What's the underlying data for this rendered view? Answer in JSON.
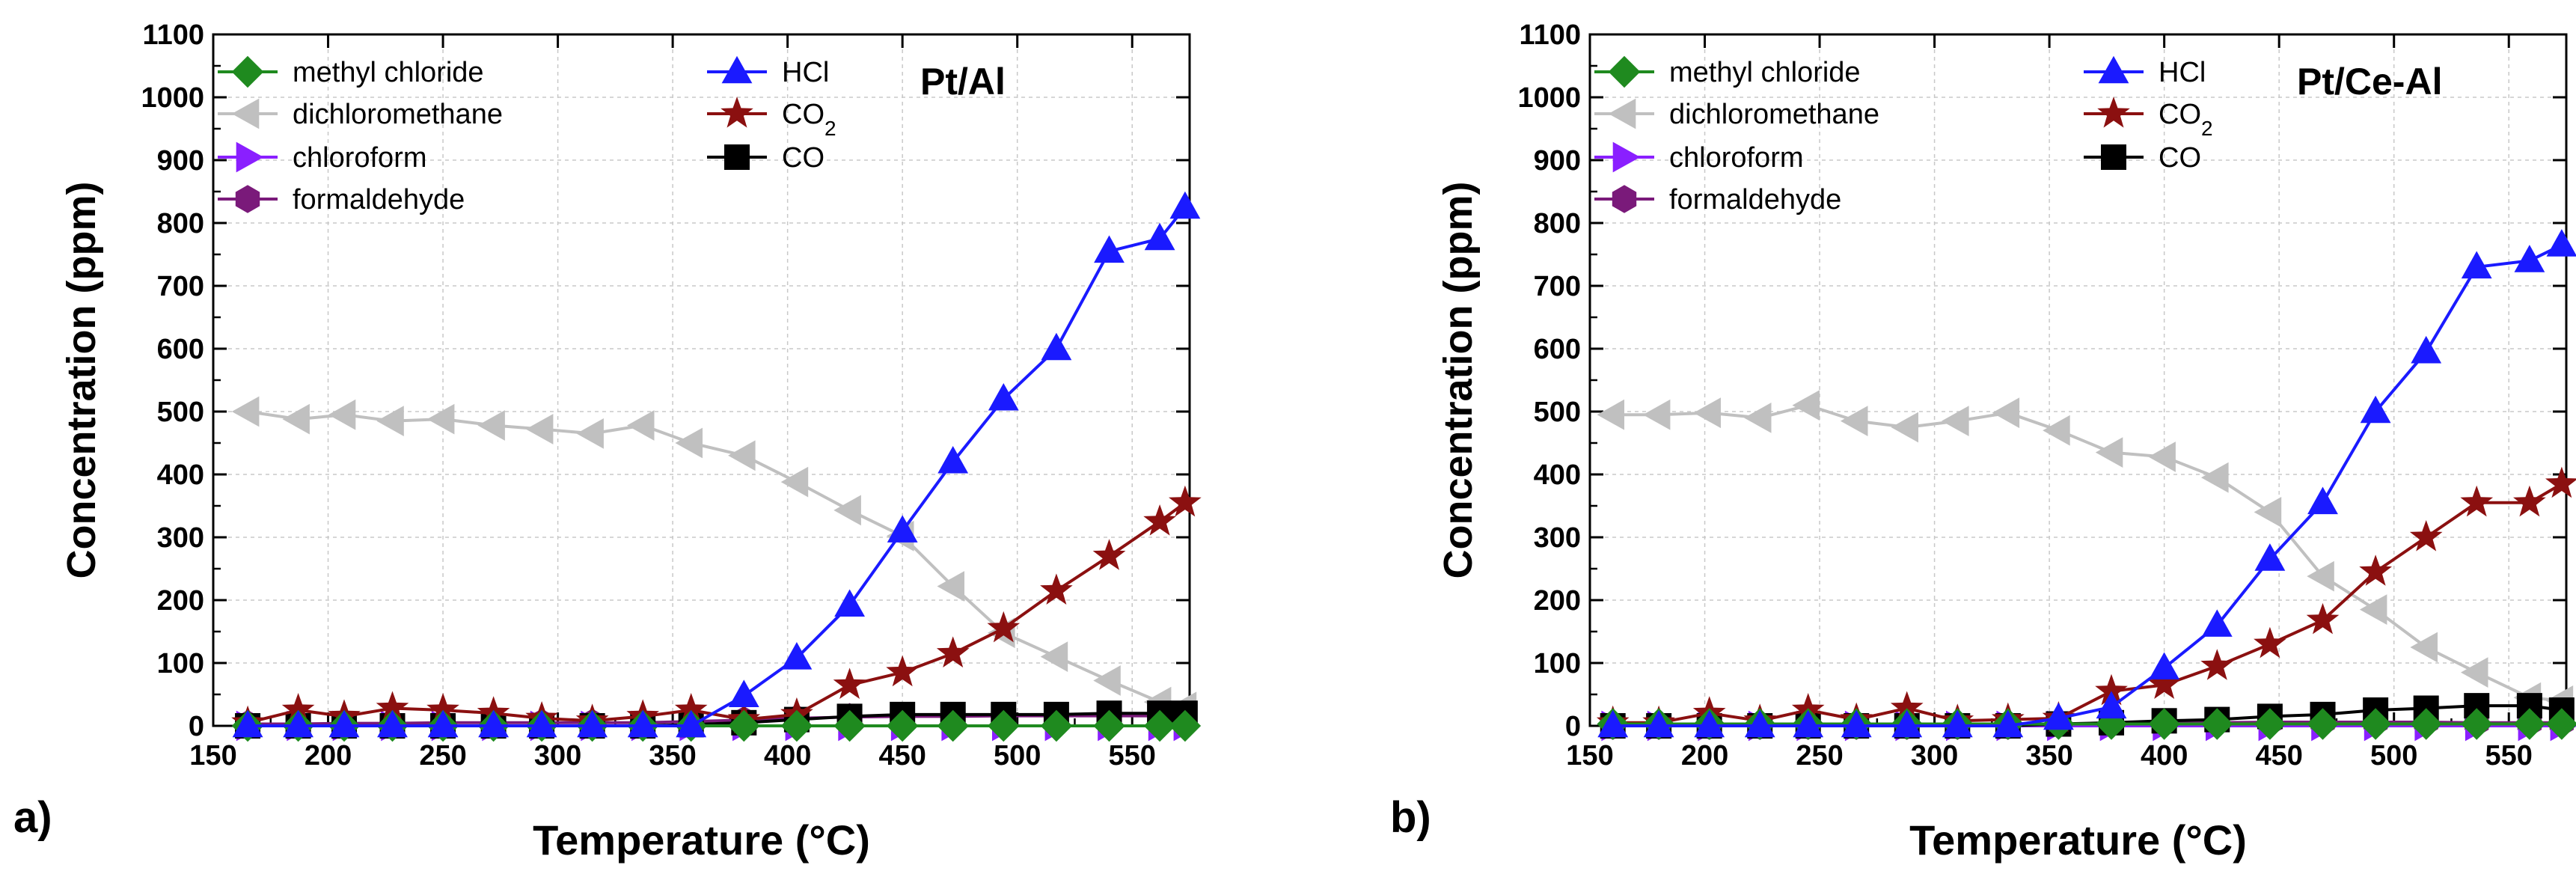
{
  "legend_entries": [
    {
      "key": "methyl_chloride",
      "label": "methyl chloride"
    },
    {
      "key": "dichloromethane",
      "label": "dichloromethane"
    },
    {
      "key": "chloroform",
      "label": "chloroform"
    },
    {
      "key": "formaldehyde",
      "label": "formaldehyde"
    },
    {
      "key": "HCl",
      "label": "HCl"
    },
    {
      "key": "CO2",
      "label": "CO",
      "sub": "2"
    },
    {
      "key": "CO",
      "label": "CO"
    }
  ],
  "styles": {
    "methyl_chloride": {
      "color": "#1f8a1f",
      "marker": "diamond"
    },
    "dichloromethane": {
      "color": "#c0c0c0",
      "marker": "triangle-left"
    },
    "chloroform": {
      "color": "#8a1fff",
      "marker": "triangle-right"
    },
    "formaldehyde": {
      "color": "#7a1a7a",
      "marker": "hexagon"
    },
    "HCl": {
      "color": "#1a1aff",
      "marker": "triangle-up"
    },
    "CO2": {
      "color": "#8b1010",
      "marker": "star"
    },
    "CO": {
      "color": "#000000",
      "marker": "square"
    }
  },
  "chart_data": [
    {
      "type": "line",
      "panel_label": "a)",
      "title": "Pt/Al",
      "xlabel": "Temperature (°C)",
      "ylabel": "Concentration (ppm)",
      "xlim": [
        150,
        575
      ],
      "ylim": [
        0,
        1100
      ],
      "xticks": [
        150,
        200,
        250,
        300,
        350,
        400,
        450,
        500,
        550
      ],
      "yticks": [
        0,
        100,
        200,
        300,
        400,
        500,
        600,
        700,
        800,
        900,
        1000,
        1100
      ],
      "grid": true,
      "x": [
        165,
        187,
        207,
        228,
        250,
        272,
        293,
        315,
        337,
        358,
        381,
        404,
        427,
        450,
        472,
        494,
        517,
        540,
        562,
        573
      ],
      "series": [
        {
          "key": "methyl_chloride",
          "name": "methyl chloride",
          "values": [
            0,
            0,
            0,
            0,
            0,
            0,
            0,
            0,
            0,
            0,
            0,
            0,
            0,
            0,
            0,
            0,
            0,
            0,
            0,
            0
          ]
        },
        {
          "key": "dichloromethane",
          "name": "dichloromethane",
          "values": [
            500,
            488,
            495,
            485,
            488,
            478,
            472,
            465,
            478,
            450,
            430,
            388,
            343,
            302,
            222,
            148,
            110,
            72,
            38,
            30
          ]
        },
        {
          "key": "chloroform",
          "name": "chloroform",
          "values": [
            0,
            0,
            0,
            0,
            0,
            0,
            0,
            0,
            0,
            0,
            0,
            0,
            0,
            0,
            0,
            0,
            0,
            0,
            0,
            0
          ]
        },
        {
          "key": "formaldehyde",
          "name": "formaldehyde",
          "values": [
            3,
            3,
            4,
            4,
            5,
            5,
            5,
            5,
            5,
            7,
            9,
            12,
            14,
            15,
            15,
            16,
            16,
            16,
            16,
            16
          ]
        },
        {
          "key": "HCl",
          "name": "HCl",
          "values": [
            0,
            0,
            0,
            0,
            0,
            0,
            0,
            0,
            0,
            0,
            48,
            108,
            192,
            310,
            420,
            520,
            600,
            755,
            775,
            825
          ]
        },
        {
          "key": "CO2",
          "name": "CO2",
          "values": [
            5,
            25,
            15,
            28,
            25,
            20,
            12,
            8,
            15,
            25,
            10,
            18,
            65,
            85,
            115,
            155,
            215,
            270,
            325,
            355
          ]
        },
        {
          "key": "CO",
          "name": "CO",
          "values": [
            0,
            0,
            0,
            0,
            0,
            0,
            0,
            0,
            0,
            2,
            5,
            10,
            15,
            18,
            18,
            18,
            18,
            20,
            20,
            20
          ]
        }
      ]
    },
    {
      "type": "line",
      "panel_label": "b)",
      "title": "Pt/Ce-Al",
      "xlabel": "Temperature (°C)",
      "ylabel": "Concentration (ppm)",
      "xlim": [
        150,
        575
      ],
      "ylim": [
        0,
        1100
      ],
      "xticks": [
        150,
        200,
        250,
        300,
        350,
        400,
        450,
        500,
        550
      ],
      "yticks": [
        0,
        100,
        200,
        300,
        400,
        500,
        600,
        700,
        800,
        900,
        1000,
        1100
      ],
      "grid": true,
      "x": [
        160,
        180,
        202,
        224,
        245,
        266,
        288,
        310,
        332,
        354,
        377,
        400,
        423,
        446,
        469,
        492,
        514,
        536,
        559,
        573
      ],
      "series": [
        {
          "key": "methyl_chloride",
          "name": "methyl chloride",
          "values": [
            3,
            3,
            3,
            3,
            3,
            3,
            3,
            3,
            3,
            3,
            3,
            3,
            3,
            3,
            3,
            3,
            3,
            3,
            3,
            3
          ]
        },
        {
          "key": "dichloromethane",
          "name": "dichloromethane",
          "values": [
            495,
            495,
            498,
            490,
            510,
            485,
            475,
            485,
            498,
            470,
            435,
            428,
            395,
            340,
            238,
            185,
            125,
            85,
            45,
            40
          ]
        },
        {
          "key": "chloroform",
          "name": "chloroform",
          "values": [
            0,
            0,
            0,
            0,
            0,
            0,
            0,
            0,
            0,
            0,
            0,
            0,
            0,
            0,
            0,
            0,
            0,
            0,
            0,
            0
          ]
        },
        {
          "key": "formaldehyde",
          "name": "formaldehyde",
          "values": [
            0,
            0,
            0,
            0,
            0,
            0,
            0,
            0,
            0,
            2,
            3,
            4,
            5,
            6,
            6,
            6,
            6,
            5,
            5,
            5
          ]
        },
        {
          "key": "HCl",
          "name": "HCl",
          "values": [
            0,
            0,
            0,
            0,
            0,
            0,
            0,
            0,
            0,
            12,
            30,
            92,
            160,
            265,
            355,
            500,
            595,
            730,
            740,
            765
          ]
        },
        {
          "key": "CO2",
          "name": "CO2",
          "values": [
            5,
            5,
            20,
            8,
            25,
            10,
            28,
            8,
            10,
            12,
            55,
            65,
            95,
            130,
            168,
            245,
            300,
            355,
            355,
            385
          ]
        },
        {
          "key": "CO",
          "name": "CO",
          "values": [
            0,
            0,
            0,
            0,
            0,
            0,
            0,
            0,
            0,
            3,
            5,
            8,
            10,
            15,
            18,
            25,
            28,
            32,
            32,
            25
          ]
        }
      ]
    }
  ]
}
